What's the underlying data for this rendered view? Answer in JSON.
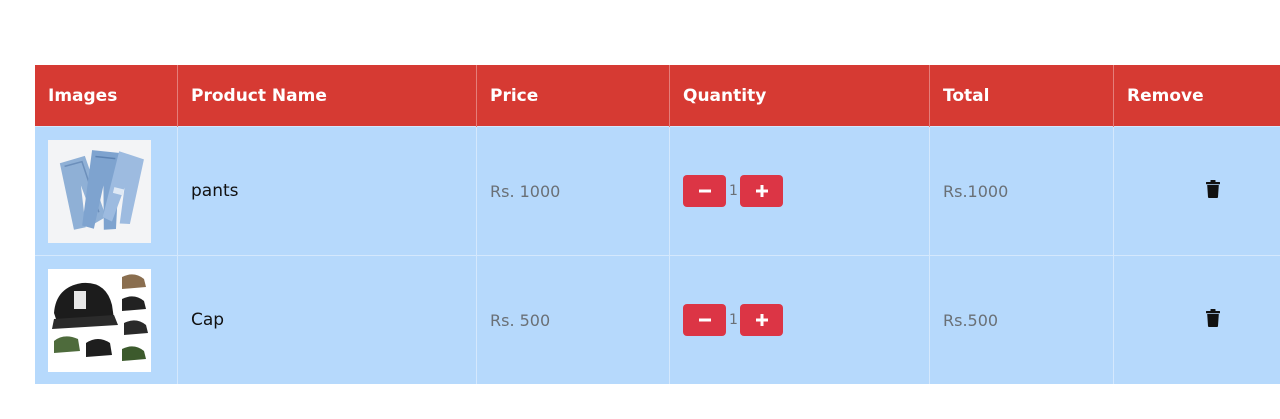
{
  "table": {
    "headers": [
      "Images",
      "Product Name",
      "Price",
      "Quantity",
      "Total",
      "Remove"
    ],
    "rows": [
      {
        "image_icon": "pants-photo",
        "name": "pants",
        "price": "Rs. 1000",
        "quantity": "1",
        "total": "Rs.1000",
        "remove_icon": "trash-icon"
      },
      {
        "image_icon": "cap-photo",
        "name": "Cap",
        "price": "Rs. 500",
        "quantity": "1",
        "total": "Rs.500",
        "remove_icon": "trash-icon"
      }
    ]
  },
  "colors": {
    "header_bg": "#d63a33",
    "row_bg": "#b6d9fc",
    "button_bg": "#dc3545"
  }
}
